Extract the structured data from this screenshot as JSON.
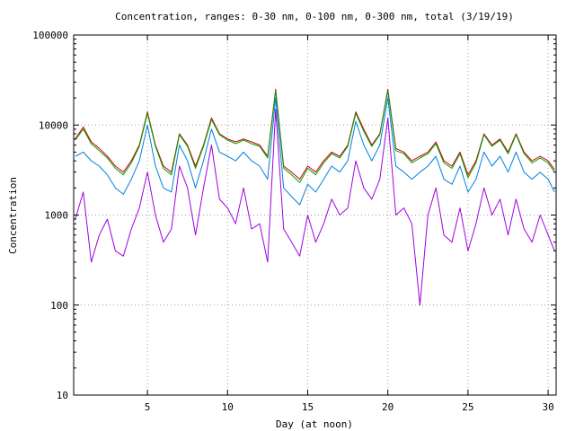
{
  "chart_data": {
    "type": "line",
    "title": "Concentration, ranges: 0-30 nm, 0-100 nm, 0-300 nm, total (3/19/19)",
    "xlabel": "Day (at noon)",
    "ylabel": "Concentration",
    "xlim": [
      0.4,
      30.5
    ],
    "ylim": [
      10,
      100000
    ],
    "yscale": "log",
    "grid": true,
    "xticks": [
      5,
      10,
      15,
      20,
      25,
      30
    ],
    "xtick_labels": [
      "5",
      "10",
      "15",
      "20",
      "25",
      "30"
    ],
    "yticks": [
      10,
      100,
      1000,
      10000,
      100000
    ],
    "ytick_labels": [
      "10",
      "100",
      "1000",
      "10000",
      "100000"
    ],
    "x": [
      0.5,
      1.0,
      1.5,
      2.0,
      2.5,
      3.0,
      3.5,
      4.0,
      4.5,
      5.0,
      5.5,
      6.0,
      6.5,
      7.0,
      7.5,
      8.0,
      8.5,
      9.0,
      9.5,
      10.0,
      10.5,
      11.0,
      11.5,
      12.0,
      12.5,
      13.0,
      13.5,
      14.0,
      14.5,
      15.0,
      15.5,
      16.0,
      16.5,
      17.0,
      17.5,
      18.0,
      18.5,
      19.0,
      19.5,
      20.0,
      20.5,
      21.0,
      21.5,
      22.0,
      22.5,
      23.0,
      23.5,
      24.0,
      24.5,
      25.0,
      25.5,
      26.0,
      26.5,
      27.0,
      27.5,
      28.0,
      28.5,
      29.0,
      29.5,
      30.0,
      30.4
    ],
    "series": [
      {
        "color": "#cc0000",
        "values": [
          7000,
          9500,
          6500,
          5500,
          4500,
          3500,
          3000,
          4000,
          6000,
          14000,
          6000,
          3500,
          3000,
          8000,
          6000,
          3500,
          6000,
          12000,
          8000,
          7000,
          6500,
          7000,
          6500,
          6000,
          4500,
          25000,
          3500,
          3000,
          2500,
          3500,
          3000,
          4000,
          5000,
          4500,
          6000,
          14000,
          9000,
          6000,
          8000,
          25000,
          5500,
          5000,
          4000,
          4500,
          5000,
          6500,
          4000,
          3500,
          5000,
          2800,
          4000,
          8000,
          6000,
          7000,
          5000,
          8000,
          5000,
          4000,
          4500,
          4000,
          3200
        ]
      },
      {
        "color": "#00a000",
        "values": [
          6800,
          9000,
          6200,
          5200,
          4300,
          3300,
          2800,
          3800,
          5800,
          13500,
          5800,
          3300,
          2800,
          7800,
          5800,
          3300,
          5800,
          11500,
          7800,
          6800,
          6200,
          6800,
          6200,
          5800,
          4300,
          24000,
          3300,
          2800,
          2300,
          3300,
          2800,
          3800,
          4800,
          4300,
          5800,
          13500,
          8500,
          5800,
          7800,
          24000,
          5200,
          4800,
          3800,
          4300,
          4800,
          6200,
          3800,
          3300,
          4800,
          2600,
          3800,
          7800,
          5800,
          6800,
          4800,
          7800,
          4800,
          3800,
          4300,
          3800,
          3000
        ]
      },
      {
        "color": "#0080e0",
        "values": [
          4500,
          5000,
          4000,
          3500,
          2800,
          2000,
          1700,
          2500,
          4000,
          10000,
          3500,
          2000,
          1800,
          6000,
          4000,
          2000,
          4000,
          9000,
          5000,
          4500,
          4000,
          5000,
          4000,
          3500,
          2500,
          20000,
          2000,
          1600,
          1300,
          2200,
          1800,
          2500,
          3500,
          3000,
          4000,
          11000,
          6000,
          4000,
          6000,
          20000,
          3500,
          3000,
          2500,
          3000,
          3500,
          4500,
          2500,
          2200,
          3500,
          1800,
          2500,
          5000,
          3500,
          4500,
          3000,
          5000,
          3000,
          2500,
          3000,
          2500,
          1800
        ]
      },
      {
        "color": "#a000e0",
        "values": [
          900,
          1800,
          300,
          600,
          900,
          400,
          350,
          700,
          1200,
          3000,
          1000,
          500,
          700,
          3500,
          2000,
          600,
          2000,
          6000,
          1500,
          1200,
          800,
          2000,
          700,
          800,
          300,
          15000,
          700,
          500,
          350,
          1000,
          500,
          800,
          1500,
          1000,
          1200,
          4000,
          2000,
          1500,
          2500,
          12000,
          1000,
          1200,
          800,
          100,
          1000,
          2000,
          600,
          500,
          1200,
          400,
          800,
          2000,
          1000,
          1500,
          600,
          1500,
          700,
          500,
          1000,
          600,
          400
        ]
      }
    ]
  }
}
